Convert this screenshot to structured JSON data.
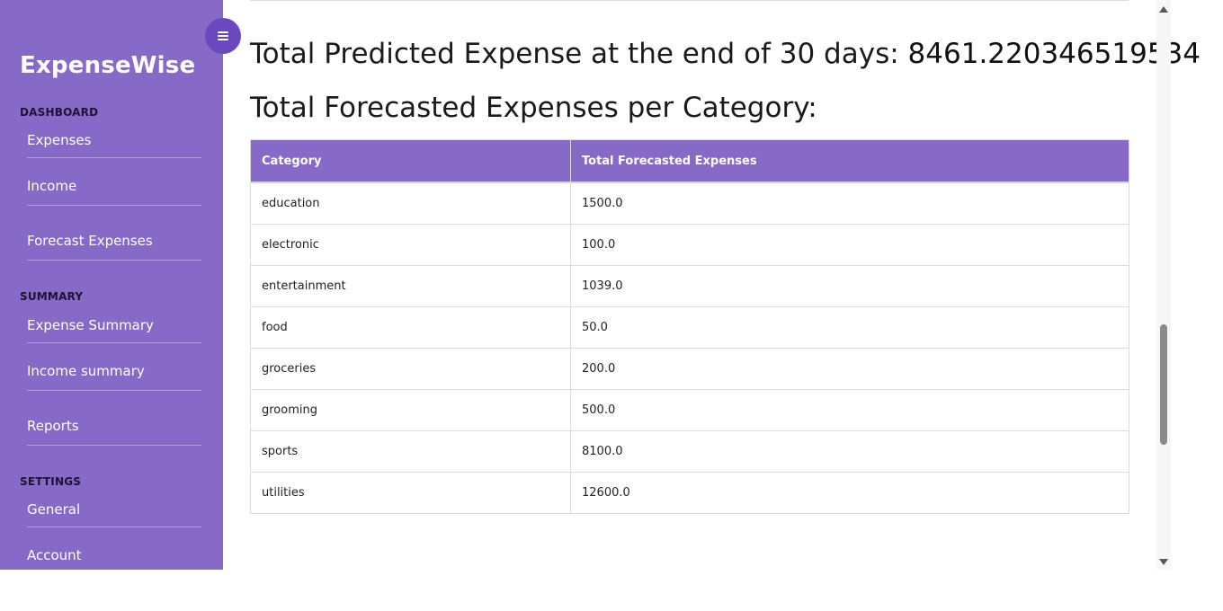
{
  "colors": {
    "sidebar_bg": "#8769c7",
    "toggle_bg": "#6a48bd",
    "table_header_bg": "#8769c7"
  },
  "sidebar": {
    "brand": "ExpenseWise",
    "toggle_icon": "menu-icon",
    "sections": [
      {
        "title": "DASHBOARD",
        "items": [
          "Expenses",
          "Income",
          "Forecast Expenses"
        ]
      },
      {
        "title": "SUMMARY",
        "items": [
          "Expense Summary",
          "Income summary",
          "Reports"
        ]
      },
      {
        "title": "SETTINGS",
        "items": [
          "General",
          "Account"
        ]
      }
    ]
  },
  "main": {
    "total_label": "Total Predicted Expense at the end of 30 days:",
    "total_value": "8461.220346519534",
    "category_heading": "Total Forecasted Expenses per Category:",
    "table": {
      "headers": [
        "Category",
        "Total Forecasted Expenses"
      ],
      "rows": [
        [
          "education",
          "1500.0"
        ],
        [
          "electronic",
          "100.0"
        ],
        [
          "entertainment",
          "1039.0"
        ],
        [
          "food",
          "50.0"
        ],
        [
          "groceries",
          "200.0"
        ],
        [
          "grooming",
          "500.0"
        ],
        [
          "sports",
          "8100.0"
        ],
        [
          "utilities",
          "12600.0"
        ]
      ]
    }
  },
  "scrollbar": {
    "up_icon": "scroll-up-arrow-icon",
    "down_icon": "scroll-down-arrow-icon"
  }
}
